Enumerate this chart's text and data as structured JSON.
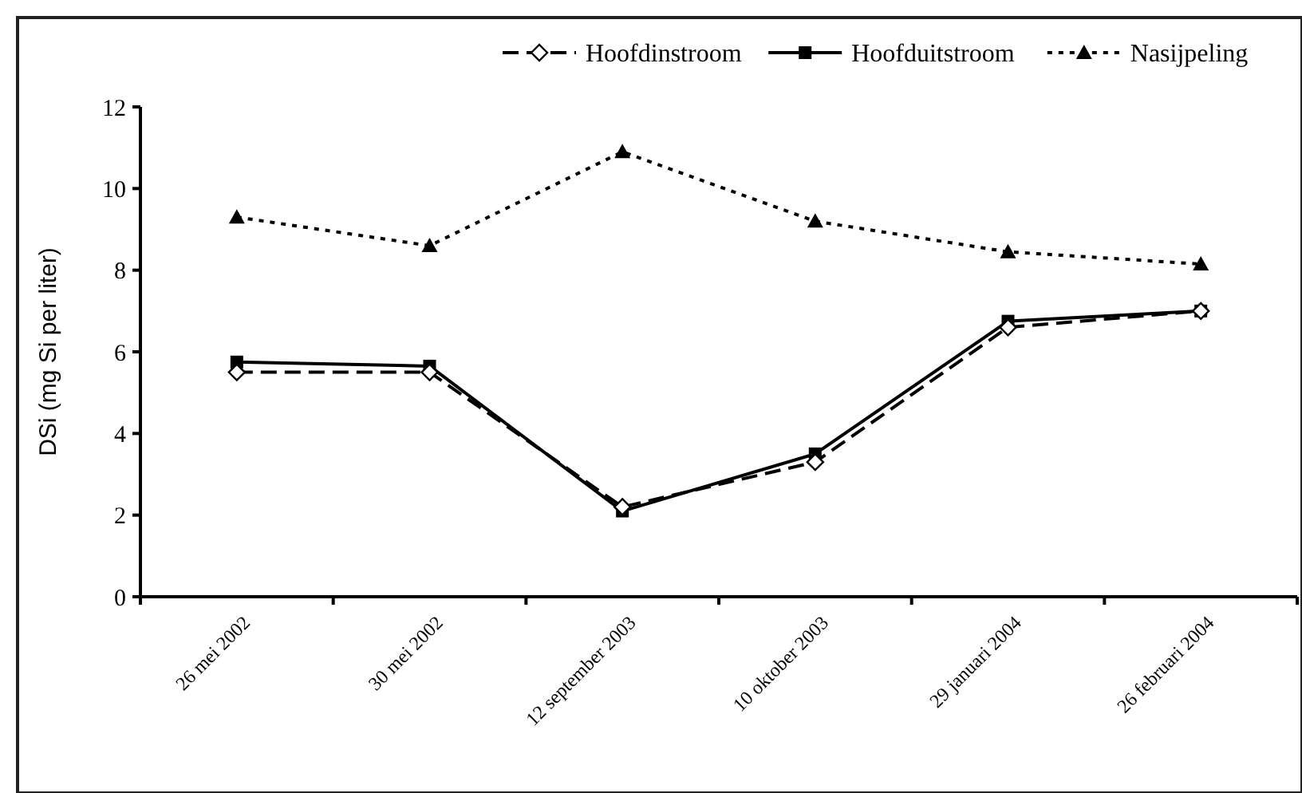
{
  "chart_data": {
    "type": "line",
    "ylabel": "DSi (mg Si per liter)",
    "categories": [
      "26 mei 2002",
      "30 mei 2002",
      "12 september 2003",
      "10 oktober 2003",
      "29 januari 2004",
      "26 februari 2004"
    ],
    "series": [
      {
        "name": "Hoofdinstroom",
        "color": "#000000",
        "marker": "diamond",
        "line_style": "dashed",
        "values": [
          5.5,
          5.5,
          2.2,
          3.3,
          6.6,
          7.0
        ]
      },
      {
        "name": "Hoofduitstroom",
        "color": "#000000",
        "marker": "square",
        "line_style": "solid",
        "values": [
          5.75,
          5.65,
          2.1,
          3.5,
          6.75,
          7.0
        ]
      },
      {
        "name": "Nasijpeling",
        "color": "#000000",
        "marker": "triangle",
        "line_style": "dotted",
        "values": [
          9.3,
          8.6,
          10.9,
          9.2,
          8.45,
          8.15
        ]
      }
    ],
    "ylim": [
      0,
      12
    ],
    "yticks": [
      0,
      2,
      4,
      6,
      8,
      10,
      12
    ],
    "grid": false,
    "legend": "top"
  }
}
